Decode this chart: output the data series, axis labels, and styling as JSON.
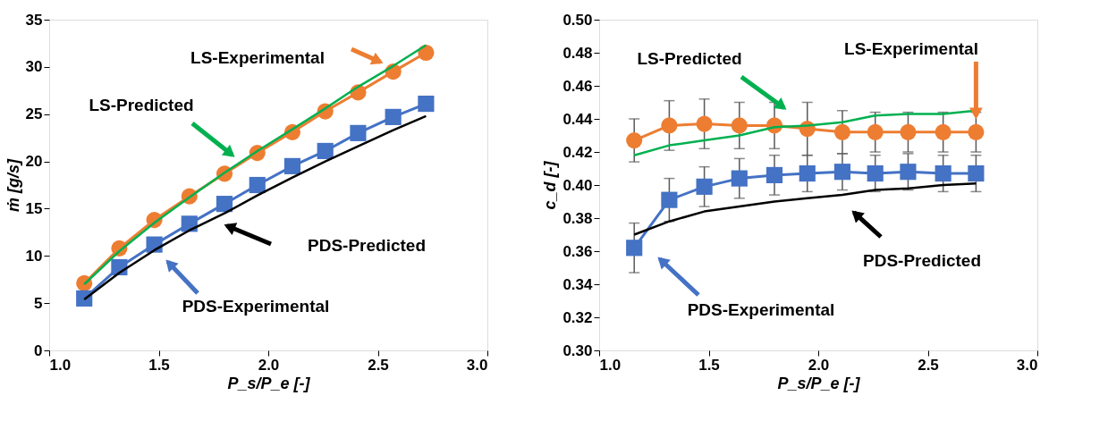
{
  "chart_data": [
    {
      "type": "line",
      "xlabel": "P_s/P_e [-]",
      "ylabel": "ṁ  [g/s]",
      "x": [
        1.16,
        1.32,
        1.48,
        1.64,
        1.8,
        1.95,
        2.11,
        2.26,
        2.41,
        2.57,
        2.72
      ],
      "xlim": [
        1.0,
        3.0
      ],
      "xticks": [
        {
          "value": 1.0,
          "label": "1.0"
        },
        {
          "value": 1.5,
          "label": "1.5"
        },
        {
          "value": 2.0,
          "label": "2.0"
        },
        {
          "value": 2.5,
          "label": "2.5"
        },
        {
          "value": 3.0,
          "label": "3.0"
        }
      ],
      "ylim": [
        0,
        35
      ],
      "yticks": [
        0,
        5,
        10,
        15,
        20,
        25,
        30,
        35
      ],
      "grid": false,
      "legend": false,
      "series": [
        {
          "marker": "circle",
          "color": "#ed7d31",
          "values": [
            7.1,
            10.8,
            13.8,
            16.3,
            18.7,
            20.9,
            23.1,
            25.3,
            27.3,
            29.5,
            31.5
          ]
        },
        {
          "marker": "square",
          "color": "#4472c4",
          "values": [
            5.5,
            8.8,
            11.2,
            13.4,
            15.5,
            17.5,
            19.5,
            21.1,
            23.0,
            24.7,
            26.1
          ]
        },
        {
          "marker": "none",
          "color": "#00b050",
          "values": [
            7.0,
            10.5,
            13.5,
            16.2,
            18.8,
            21.1,
            23.4,
            25.6,
            27.9,
            30.1,
            32.3
          ]
        },
        {
          "marker": "none",
          "color": "#000000",
          "values": [
            5.4,
            8.2,
            10.6,
            12.7,
            14.5,
            16.4,
            18.3,
            20.0,
            21.6,
            23.3,
            24.8
          ]
        }
      ],
      "annotations": [
        "LS-Experimental",
        "PDS-Experimental",
        "LS-Predicted",
        "PDS-Predicted"
      ]
    },
    {
      "type": "line",
      "xlabel": "P_s/P_e [-]",
      "ylabel": "c_d [-]",
      "x": [
        1.16,
        1.32,
        1.48,
        1.64,
        1.8,
        1.95,
        2.11,
        2.26,
        2.41,
        2.57,
        2.72
      ],
      "xlim": [
        1.0,
        3.0
      ],
      "xticks": [
        {
          "value": 1.0,
          "label": "1.0"
        },
        {
          "value": 1.5,
          "label": "1.5"
        },
        {
          "value": 2.0,
          "label": "2.0"
        },
        {
          "value": 2.5,
          "label": "2.5"
        },
        {
          "value": 3.0,
          "label": "3.0"
        }
      ],
      "ylim": [
        0.3,
        0.5
      ],
      "yticks": [
        {
          "value": 0.3,
          "label": "0.30"
        },
        {
          "value": 0.32,
          "label": "0.32"
        },
        {
          "value": 0.34,
          "label": "0.34"
        },
        {
          "value": 0.36,
          "label": "0.36"
        },
        {
          "value": 0.38,
          "label": "0.38"
        },
        {
          "value": 0.4,
          "label": "0.40"
        },
        {
          "value": 0.42,
          "label": "0.42"
        },
        {
          "value": 0.44,
          "label": "0.44"
        },
        {
          "value": 0.46,
          "label": "0.46"
        },
        {
          "value": 0.48,
          "label": "0.48"
        },
        {
          "value": 0.5,
          "label": "0.50"
        }
      ],
      "grid": false,
      "legend": false,
      "series": [
        {
          "marker": "circle",
          "color": "#ed7d31",
          "values": [
            0.427,
            0.436,
            0.437,
            0.436,
            0.436,
            0.434,
            0.432,
            0.432,
            0.432,
            0.432,
            0.432
          ],
          "errors": [
            0.013,
            0.015,
            0.015,
            0.014,
            0.014,
            0.016,
            0.013,
            0.012,
            0.012,
            0.012,
            0.012
          ]
        },
        {
          "marker": "square",
          "color": "#4472c4",
          "values": [
            0.362,
            0.391,
            0.399,
            0.404,
            0.406,
            0.407,
            0.408,
            0.407,
            0.408,
            0.407,
            0.407
          ],
          "errors": [
            0.015,
            0.013,
            0.012,
            0.012,
            0.012,
            0.011,
            0.011,
            0.011,
            0.011,
            0.011,
            0.011
          ]
        },
        {
          "marker": "none",
          "color": "#00b050",
          "values": [
            0.418,
            0.424,
            0.427,
            0.43,
            0.435,
            0.436,
            0.438,
            0.442,
            0.443,
            0.443,
            0.445
          ]
        },
        {
          "marker": "none",
          "color": "#000000",
          "values": [
            0.37,
            0.378,
            0.384,
            0.387,
            0.39,
            0.392,
            0.394,
            0.397,
            0.398,
            0.4,
            0.401
          ]
        }
      ],
      "annotations": [
        {
          "text": "LS-Experimental",
          "x": 2.72,
          "y": 0.4395
        },
        "PDS-Experimental",
        "LS-Predicted",
        "PDS-Predicted"
      ]
    }
  ]
}
